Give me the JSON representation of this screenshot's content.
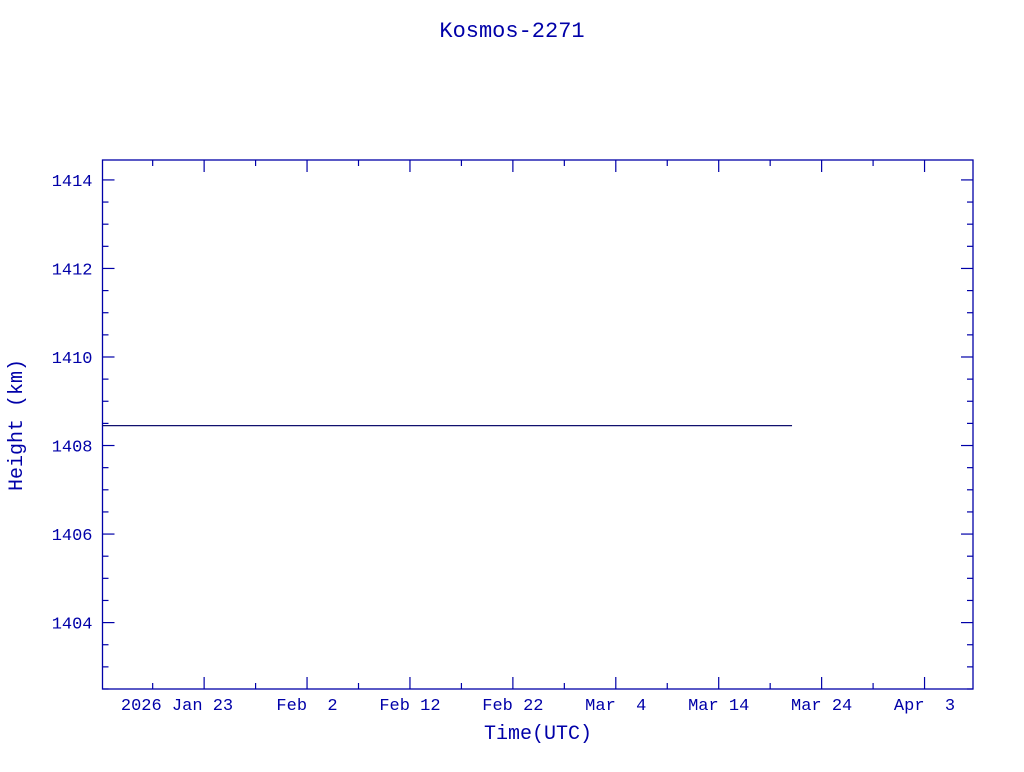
{
  "chart_data": {
    "type": "line",
    "title": "Kosmos-2271",
    "xlabel": "Time(UTC)",
    "ylabel": "Height (km)",
    "xlim": [
      "2026-01-13T03:00",
      "2026-04-07T17:00"
    ],
    "ylim": [
      1402.5,
      1414.45
    ],
    "x_ticks": [
      {
        "date": "2026-01-23",
        "label": "2026 Jan 23"
      },
      {
        "date": "2026-02-02",
        "label": "Feb  2"
      },
      {
        "date": "2026-02-12",
        "label": "Feb 12"
      },
      {
        "date": "2026-02-22",
        "label": "Feb 22"
      },
      {
        "date": "2026-03-04",
        "label": "Mar  4"
      },
      {
        "date": "2026-03-14",
        "label": "Mar 14"
      },
      {
        "date": "2026-03-24",
        "label": "Mar 24"
      },
      {
        "date": "2026-04-03",
        "label": "Apr  3"
      }
    ],
    "y_ticks": [
      1404,
      1406,
      1408,
      1410,
      1412,
      1414
    ],
    "series": [
      {
        "x": [
          "2026-01-13T03:00",
          "2026-03-21T03:00"
        ],
        "y": [
          1408.45,
          1408.45
        ]
      }
    ],
    "grid": false,
    "colors": {
      "axis": "#0000a8",
      "line": "#10106e"
    }
  }
}
